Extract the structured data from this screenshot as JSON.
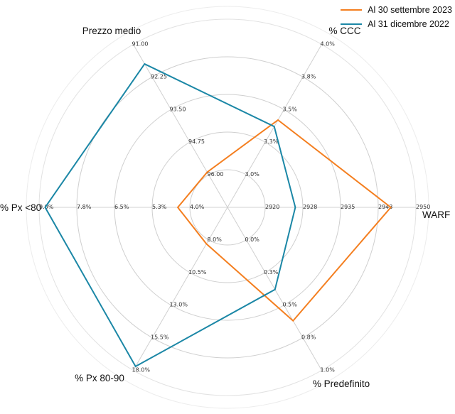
{
  "chart_data": {
    "type": "radar",
    "title": "",
    "axes": [
      {
        "name": "WARF",
        "ticks": [
          "2920",
          "2928",
          "2935",
          "2943",
          "2950"
        ],
        "range": [
          2920,
          2950
        ],
        "inverted": false
      },
      {
        "name": "% CCC",
        "ticks": [
          "3.0%",
          "3.3%",
          "3.5%",
          "3.8%",
          "4.0%"
        ],
        "range": [
          3.0,
          4.0
        ],
        "inverted": false
      },
      {
        "name": "Prezzo medio",
        "ticks": [
          "96.00",
          "94.75",
          "93.50",
          "92.25",
          "91.00"
        ],
        "range": [
          96.0,
          91.0
        ],
        "inverted": true
      },
      {
        "name": "% Px <80",
        "ticks": [
          "4.0%",
          "5.3%",
          "6.5%",
          "7.8%",
          "9.0%"
        ],
        "range": [
          4.0,
          9.0
        ],
        "inverted": false
      },
      {
        "name": "% Px 80-90",
        "ticks": [
          "8.0%",
          "10.5%",
          "13.0%",
          "15.5%",
          "18.0%"
        ],
        "range": [
          8.0,
          18.0
        ],
        "inverted": false
      },
      {
        "name": "% Predefinito",
        "ticks": [
          "0.0%",
          "0.3%",
          "0.5%",
          "0.8%",
          "1.0%"
        ],
        "range": [
          0.0,
          1.0
        ],
        "inverted": false
      }
    ],
    "series": [
      {
        "name": "Al 30 settembre 2023",
        "color": "#f47f20",
        "values": [
          2945,
          3.42,
          95.9,
          4.4,
          8.3,
          0.62
        ]
      },
      {
        "name": "Al 31 dicembre 2022",
        "color": "#1b87a6",
        "values": [
          2926,
          3.37,
          91.75,
          8.8,
          17.7,
          0.38
        ]
      }
    ],
    "legend_position": "top-right",
    "grid": true
  }
}
